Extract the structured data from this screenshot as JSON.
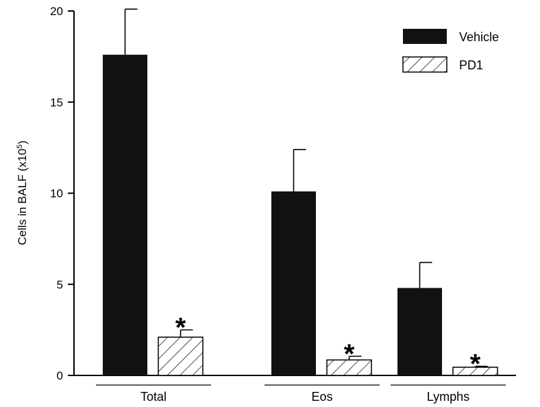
{
  "chart_data": {
    "type": "bar",
    "categories": [
      "Total",
      "Eos",
      "Lymphs"
    ],
    "series": [
      {
        "name": "Vehicle",
        "values": [
          17.6,
          10.1,
          4.8
        ],
        "error": [
          2.5,
          2.3,
          1.4
        ],
        "fill": "solid"
      },
      {
        "name": "PD1",
        "values": [
          2.1,
          0.85,
          0.45
        ],
        "error": [
          0.4,
          0.2,
          0.05
        ],
        "fill": "hatched"
      }
    ],
    "significance": [
      {
        "series": "PD1",
        "category": "Total",
        "mark": "*"
      },
      {
        "series": "PD1",
        "category": "Eos",
        "mark": "*"
      },
      {
        "series": "PD1",
        "category": "Lymphs",
        "mark": "*"
      }
    ],
    "ylabel_main": "Cells in BALF (x10",
    "ylabel_sup": "5",
    "ylabel_end": ")",
    "ylim": [
      0,
      20
    ],
    "yticks": [
      "0",
      "5",
      "10",
      "15",
      "20"
    ],
    "legend_position": "top-right",
    "colors": {
      "vehicle": "#111111",
      "pd1_fill": "#ffffff",
      "stroke": "#000000"
    }
  }
}
